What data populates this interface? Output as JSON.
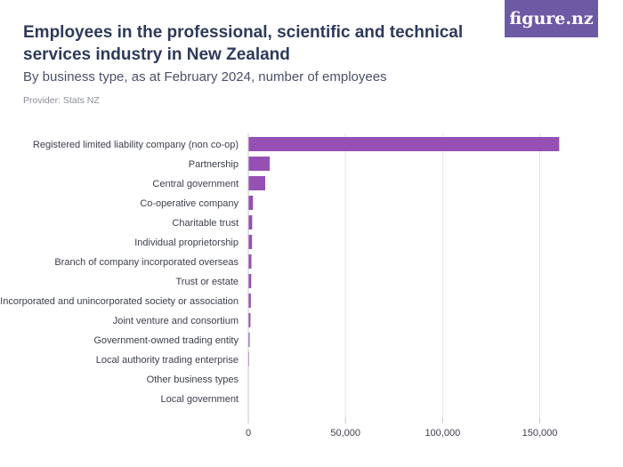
{
  "header": {
    "title": "Employees in the professional, scientific and technical services industry in New Zealand",
    "subtitle": "By business type, as at February 2024, number of employees",
    "provider": "Provider: Stats NZ",
    "logo_text": "figure.nz"
  },
  "colors": {
    "bar": "#9650b4",
    "axis": "#c9c9c9",
    "grid": "#e4e4e4",
    "label": "#3b3f4a",
    "logo_bg": "#6e59a5"
  },
  "chart_data": {
    "type": "bar",
    "orientation": "horizontal",
    "categories": [
      "Registered limited liability company (non co-op)",
      "Partnership",
      "Central government",
      "Co-operative company",
      "Charitable trust",
      "Individual proprietorship",
      "Branch of company incorporated overseas",
      "Trust or estate",
      "Incorporated and unincorporated society or association",
      "Joint venture and consortium",
      "Government-owned trading entity",
      "Local authority trading enterprise",
      "Other business types",
      "Local government"
    ],
    "values": [
      160000,
      11000,
      8700,
      2400,
      2000,
      1900,
      1600,
      1500,
      1300,
      1100,
      700,
      400,
      0,
      0
    ],
    "xlim": [
      0,
      180000
    ],
    "xticks": [
      0,
      50000,
      100000,
      150000
    ],
    "xtick_labels": [
      "0",
      "50,000",
      "100,000",
      "150,000"
    ],
    "xlabel": "",
    "ylabel": "",
    "grid": true
  }
}
